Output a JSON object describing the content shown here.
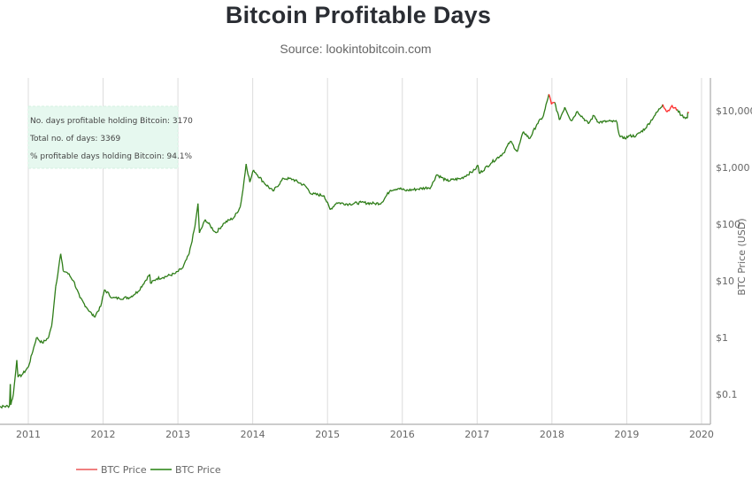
{
  "chart_data": {
    "type": "line",
    "title": "Bitcoin Profitable Days",
    "subtitle": "Source: lookintobitcoin.com",
    "ylabel": "BTC Price (USD)",
    "xlabel": "",
    "yscale": "log",
    "ylim": [
      0.05,
      30000
    ],
    "xlim": [
      "2010-07-17",
      "2019-12-31"
    ],
    "grid": {
      "x": true,
      "y": false
    },
    "legend_position": "bottom-left",
    "x_ticks": [
      "2011",
      "2012",
      "2013",
      "2014",
      "2015",
      "2016",
      "2017",
      "2018",
      "2019",
      "2020"
    ],
    "y_ticks": [
      {
        "value": 0.1,
        "label": "$0.1"
      },
      {
        "value": 1,
        "label": "$1"
      },
      {
        "value": 10,
        "label": "$10"
      },
      {
        "value": 100,
        "label": "$100"
      },
      {
        "value": 1000,
        "label": "$1,000"
      },
      {
        "value": 10000,
        "label": "$10,000"
      }
    ],
    "series": [
      {
        "name": "BTC Price",
        "color": "#ff2a2a",
        "meaning": "unprofitable days"
      },
      {
        "name": "BTC Price",
        "color": "#2e7d18",
        "meaning": "profitable days"
      }
    ],
    "annotation": {
      "lines": [
        "No. days profitable holding Bitcoin: 3170",
        "Total no. of days: 3369",
        "% profitable days holding Bitcoin: 94.1%"
      ],
      "background": "#e6f8ef"
    },
    "points": [
      [
        "2010-07-17",
        0.06
      ],
      [
        "2010-08-20",
        0.06
      ],
      [
        "2010-10-01",
        0.062
      ],
      [
        "2010-10-05",
        0.15
      ],
      [
        "2010-10-08",
        0.065
      ],
      [
        "2010-10-20",
        0.1
      ],
      [
        "2010-11-06",
        0.4
      ],
      [
        "2010-11-12",
        0.2
      ],
      [
        "2010-12-01",
        0.22
      ],
      [
        "2011-01-01",
        0.3
      ],
      [
        "2011-02-10",
        1.0
      ],
      [
        "2011-03-10",
        0.8
      ],
      [
        "2011-04-10",
        1.0
      ],
      [
        "2011-04-25",
        1.6
      ],
      [
        "2011-05-15",
        8
      ],
      [
        "2011-06-08",
        30
      ],
      [
        "2011-06-20",
        15
      ],
      [
        "2011-07-10",
        14
      ],
      [
        "2011-08-10",
        10
      ],
      [
        "2011-09-10",
        5
      ],
      [
        "2011-10-10",
        3.5
      ],
      [
        "2011-11-18",
        2.3
      ],
      [
        "2011-12-20",
        3.5
      ],
      [
        "2012-01-08",
        7
      ],
      [
        "2012-02-15",
        5
      ],
      [
        "2012-03-20",
        4.9
      ],
      [
        "2012-05-10",
        5.1
      ],
      [
        "2012-06-20",
        6.5
      ],
      [
        "2012-08-16",
        13
      ],
      [
        "2012-08-20",
        9
      ],
      [
        "2012-09-20",
        11
      ],
      [
        "2012-10-20",
        11.5
      ],
      [
        "2012-12-20",
        13.5
      ],
      [
        "2013-01-25",
        17
      ],
      [
        "2013-02-25",
        30
      ],
      [
        "2013-03-25",
        90
      ],
      [
        "2013-04-09",
        230
      ],
      [
        "2013-04-16",
        70
      ],
      [
        "2013-05-15",
        120
      ],
      [
        "2013-07-05",
        70
      ],
      [
        "2013-08-15",
        105
      ],
      [
        "2013-10-01",
        130
      ],
      [
        "2013-11-01",
        200
      ],
      [
        "2013-11-15",
        420
      ],
      [
        "2013-11-30",
        1150
      ],
      [
        "2013-12-18",
        550
      ],
      [
        "2014-01-05",
        900
      ],
      [
        "2014-02-25",
        540
      ],
      [
        "2014-04-10",
        380
      ],
      [
        "2014-06-01",
        640
      ],
      [
        "2014-07-15",
        620
      ],
      [
        "2014-09-15",
        470
      ],
      [
        "2014-10-15",
        340
      ],
      [
        "2014-12-15",
        320
      ],
      [
        "2015-01-14",
        180
      ],
      [
        "2015-02-15",
        240
      ],
      [
        "2015-04-15",
        225
      ],
      [
        "2015-06-15",
        240
      ],
      [
        "2015-08-20",
        230
      ],
      [
        "2015-09-20",
        235
      ],
      [
        "2015-11-04",
        400
      ],
      [
        "2015-12-15",
        430
      ],
      [
        "2016-01-15",
        390
      ],
      [
        "2016-03-15",
        415
      ],
      [
        "2016-05-20",
        450
      ],
      [
        "2016-06-17",
        750
      ],
      [
        "2016-08-05",
        580
      ],
      [
        "2016-10-15",
        640
      ],
      [
        "2016-12-20",
        900
      ],
      [
        "2017-01-05",
        1100
      ],
      [
        "2017-01-12",
        780
      ],
      [
        "2017-03-10",
        1200
      ],
      [
        "2017-05-10",
        1800
      ],
      [
        "2017-06-12",
        2900
      ],
      [
        "2017-07-16",
        1900
      ],
      [
        "2017-08-15",
        4300
      ],
      [
        "2017-09-14",
        3200
      ],
      [
        "2017-10-20",
        5800
      ],
      [
        "2017-11-20",
        8000
      ],
      [
        "2017-12-17",
        19500
      ],
      [
        "2017-12-30",
        13000
      ],
      [
        "2018-01-15",
        14000
      ],
      [
        "2018-02-06",
        6900
      ],
      [
        "2018-03-05",
        11500
      ],
      [
        "2018-04-06",
        6600
      ],
      [
        "2018-05-05",
        9800
      ],
      [
        "2018-06-28",
        5900
      ],
      [
        "2018-07-25",
        8300
      ],
      [
        "2018-08-15",
        6300
      ],
      [
        "2018-10-15",
        6500
      ],
      [
        "2018-11-14",
        6300
      ],
      [
        "2018-11-25",
        3800
      ],
      [
        "2018-12-15",
        3200
      ],
      [
        "2019-01-15",
        3600
      ],
      [
        "2019-02-15",
        3600
      ],
      [
        "2019-04-02",
        4900
      ],
      [
        "2019-05-15",
        8000
      ],
      [
        "2019-06-26",
        12900
      ],
      [
        "2019-07-17",
        9500
      ],
      [
        "2019-08-06",
        11900
      ],
      [
        "2019-09-05",
        10500
      ],
      [
        "2019-09-25",
        8200
      ],
      [
        "2019-10-24",
        7400
      ],
      [
        "2019-10-26",
        9500
      ],
      [
        "2019-11-01",
        9200
      ]
    ]
  }
}
